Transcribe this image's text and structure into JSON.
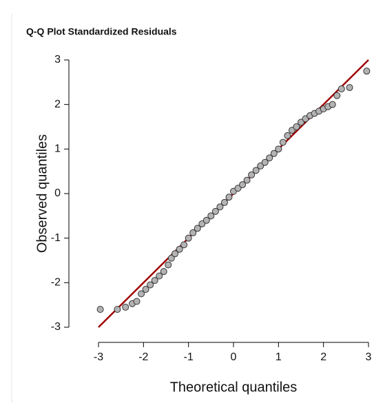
{
  "chart_data": {
    "type": "scatter",
    "title": "Q-Q Plot Standardized Residuals",
    "x_label": "Theoretical quantiles",
    "y_label": "Observed quantiles",
    "xlim": [
      -3,
      3
    ],
    "ylim": [
      -3,
      3
    ],
    "xticks": [
      -3,
      -2,
      -1,
      0,
      1,
      2,
      3
    ],
    "yticks": [
      -3,
      -2,
      -1,
      0,
      1,
      2,
      3
    ],
    "color": "#b3b3b3",
    "x": [
      -2.96,
      -2.58,
      -2.4,
      -2.25,
      -2.15,
      -2.05,
      -1.95,
      -1.85,
      -1.75,
      -1.65,
      -1.55,
      -1.45,
      -1.38,
      -1.3,
      -1.2,
      -1.1,
      -1.0,
      -0.9,
      -0.8,
      -0.7,
      -0.6,
      -0.5,
      -0.4,
      -0.3,
      -0.2,
      -0.1,
      0.0,
      0.1,
      0.2,
      0.3,
      0.4,
      0.5,
      0.6,
      0.7,
      0.8,
      0.9,
      1.0,
      1.1,
      1.2,
      1.3,
      1.4,
      1.5,
      1.6,
      1.7,
      1.8,
      1.9,
      2.0,
      2.1,
      2.2,
      2.3,
      2.4,
      2.58,
      2.96
    ],
    "y": [
      -2.6,
      -2.6,
      -2.55,
      -2.47,
      -2.42,
      -2.25,
      -2.15,
      -2.05,
      -1.95,
      -1.85,
      -1.75,
      -1.6,
      -1.45,
      -1.35,
      -1.25,
      -1.15,
      -1.0,
      -0.88,
      -0.78,
      -0.68,
      -0.6,
      -0.5,
      -0.4,
      -0.3,
      -0.2,
      -0.08,
      0.05,
      0.12,
      0.2,
      0.3,
      0.42,
      0.52,
      0.62,
      0.7,
      0.8,
      0.9,
      1.0,
      1.15,
      1.3,
      1.42,
      1.5,
      1.6,
      1.68,
      1.75,
      1.8,
      1.85,
      1.9,
      1.95,
      2.0,
      2.2,
      2.35,
      2.38,
      2.75
    ],
    "reference_line": {
      "x": [
        -3,
        3
      ],
      "y": [
        -3,
        3
      ],
      "color": "#a00000"
    }
  }
}
